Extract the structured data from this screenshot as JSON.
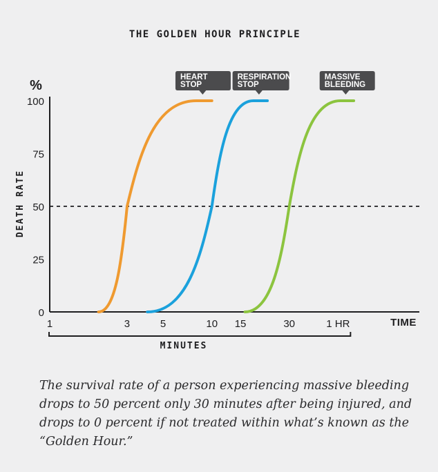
{
  "chart_data": {
    "type": "line",
    "title": "THE GOLDEN HOUR PRINCIPLE",
    "ylabel": "DEATH RATE",
    "yunit": "%",
    "xlabel": "TIME",
    "x_bracket_label": "MINUTES",
    "x_scale": "log",
    "xlim": [
      1,
      120
    ],
    "ylim": [
      0,
      100
    ],
    "x_ticks": [
      {
        "value": 1,
        "label": "1"
      },
      {
        "value": 3,
        "label": "3"
      },
      {
        "value": 5,
        "label": "5"
      },
      {
        "value": 10,
        "label": "10"
      },
      {
        "value": 15,
        "label": "15"
      },
      {
        "value": 30,
        "label": "30"
      },
      {
        "value": 60,
        "label": "1 HR"
      }
    ],
    "y_ticks": [
      0,
      25,
      50,
      75,
      100
    ],
    "reference_line": {
      "y": 50,
      "style": "dashed"
    },
    "grid": false,
    "series": [
      {
        "name": "HEART STOP",
        "label_lines": [
          "HEART",
          "STOP"
        ],
        "color": "#ef9a30",
        "start_x": 2,
        "mid_x": 3,
        "plateau_x": 8,
        "end_x": 10
      },
      {
        "name": "RESPIRATION STOP",
        "label_lines": [
          "RESPIRATION",
          "STOP"
        ],
        "color": "#1ba1dc",
        "start_x": 4,
        "mid_x": 10,
        "plateau_x": 18,
        "end_x": 22
      },
      {
        "name": "MASSIVE BLEEDING",
        "label_lines": [
          "MASSIVE",
          "BLEEDING"
        ],
        "color": "#8cc43f",
        "start_x": 16,
        "mid_x": 30,
        "plateau_x": 62,
        "end_x": 75
      }
    ],
    "callout_color": "#4b4b4d"
  },
  "caption": "The survival rate of a person experiencing massive bleeding drops to 50 percent only 30 minutes after being injured, and drops to 0 percent if not treated within what’s known as the “Golden Hour.”"
}
